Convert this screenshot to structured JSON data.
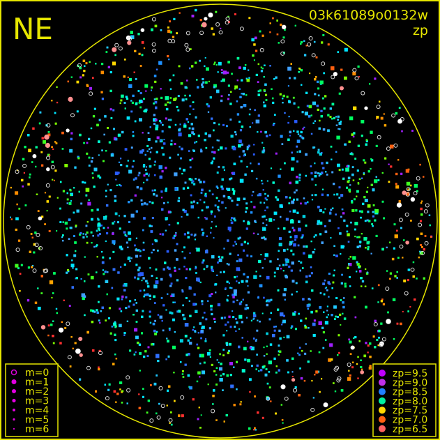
{
  "chart_data": {
    "type": "scatter",
    "title": "NE",
    "image_id_label": "03k61089o0132w",
    "color_quantity_label": "zp",
    "frame_color": "#e6e600",
    "background": "#000000",
    "size_legend": [
      {
        "label": "m=0",
        "style": "open"
      },
      {
        "label": "m=1",
        "style": "filled"
      },
      {
        "label": "m=2",
        "style": "filled"
      },
      {
        "label": "m=3",
        "style": "filled"
      },
      {
        "label": "m=4",
        "style": "filled"
      },
      {
        "label": "m=5",
        "style": "filled"
      },
      {
        "label": "m=6",
        "style": "filled"
      }
    ],
    "size_legend_color": "#e000e0",
    "color_legend": [
      {
        "label": "zp=9.5",
        "color": "#c000ff"
      },
      {
        "label": "zp=9.0",
        "color": "#c030e8"
      },
      {
        "label": "zp=8.5",
        "color": "#2080ff"
      },
      {
        "label": "zp=8.0",
        "color": "#00f0a0"
      },
      {
        "label": "zp=7.5",
        "color": "#ffd800"
      },
      {
        "label": "zp=7.0",
        "color": "#ff6010"
      },
      {
        "label": "zp=6.5",
        "color": "#ff6060"
      }
    ]
  }
}
